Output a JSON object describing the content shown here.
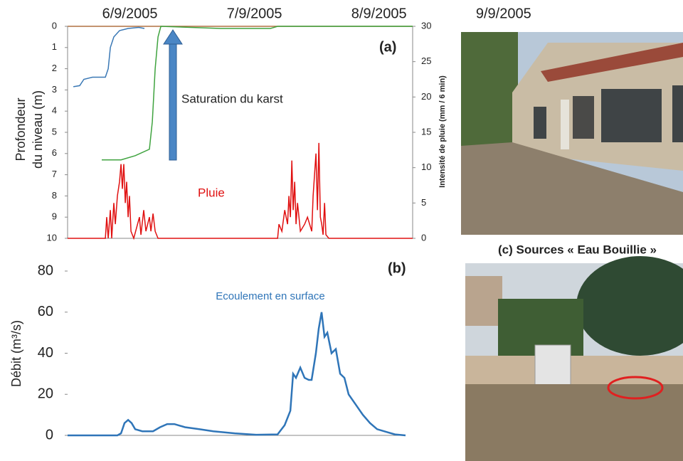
{
  "chart_data": [
    {
      "type": "line",
      "annotation": "(a)",
      "saturation_label": "Saturation du karst",
      "rain_label": "Pluie",
      "ylabel_lines": [
        "Profondeur",
        "du niveau (m)"
      ],
      "y2label": "Intensité de pluie (mm / 6 min)",
      "xlim": [
        5.5,
        8.27
      ],
      "xticks": [
        {
          "value": 6,
          "label": "6/9/2005"
        },
        {
          "value": 7,
          "label": "7/9/2005"
        },
        {
          "value": 8,
          "label": "8/9/2005"
        },
        {
          "value": 9,
          "label": "9/9/2005"
        }
      ],
      "ylim": [
        10,
        0
      ],
      "yticks": [
        0,
        1,
        2,
        3,
        4,
        5,
        6,
        7,
        8,
        9,
        10
      ],
      "y2lim": [
        0,
        30
      ],
      "y2ticks": [
        0,
        5,
        10,
        15,
        20,
        25,
        30
      ],
      "series": [
        {
          "color": "#3a78b5",
          "x": [
            5.546,
            5.597,
            5.631,
            5.7,
            5.803,
            5.826,
            5.843,
            5.871,
            5.917,
            5.986,
            6.071,
            6.117
          ],
          "values": [
            2.85,
            2.8,
            2.5,
            2.4,
            2.4,
            2.0,
            1.0,
            0.5,
            0.2,
            0.1,
            0.05,
            0.1
          ]
        },
        {
          "color": "#3fa33f",
          "x": [
            5.774,
            5.929,
            6.043,
            6.157,
            6.18,
            6.203,
            6.226,
            6.249,
            6.729,
            7.129,
            7.186,
            8.27
          ],
          "values": [
            6.3,
            6.3,
            6.1,
            5.8,
            4.5,
            2,
            0.5,
            0,
            0.1,
            0.1,
            0,
            0
          ]
        },
        {
          "color": "#e01010",
          "axis": "y2",
          "x": [
            5.5,
            5.803,
            5.814,
            5.826,
            5.843,
            5.854,
            5.871,
            5.883,
            5.9,
            5.917,
            5.929,
            5.94,
            5.951,
            5.963,
            5.974,
            5.986,
            5.997,
            6.009,
            6.031,
            6.077,
            6.089,
            6.111,
            6.129,
            6.157,
            6.169,
            6.186,
            6.203,
            6.226,
            7.186,
            7.197,
            7.22,
            7.243,
            7.266,
            7.277,
            7.289,
            7.3,
            7.311,
            7.323,
            7.334,
            7.346,
            7.369,
            7.403,
            7.426,
            7.46,
            7.471,
            7.494,
            7.506,
            7.517,
            7.529,
            7.54,
            7.551,
            7.563,
            7.574,
            7.597,
            8.27
          ],
          "values": [
            0,
            0,
            3,
            0,
            4,
            0,
            5,
            2,
            6,
            8,
            10.5,
            7,
            10.5,
            5,
            8,
            3,
            6,
            1,
            0,
            3,
            0.5,
            4,
            1,
            3,
            1,
            3.5,
            1,
            0,
            0,
            2,
            1,
            4,
            2,
            6,
            3,
            11,
            4,
            8,
            2,
            5,
            1,
            2,
            3,
            1,
            6,
            12,
            4,
            13.5,
            3,
            2,
            0.5,
            5,
            0.5,
            0,
            0
          ]
        }
      ]
    },
    {
      "type": "line",
      "annotation": "(b)",
      "flow_label": "Ecoulement en surface",
      "ylabel": "Débit (m³/s)",
      "xlim": [
        5.5,
        8.214
      ],
      "ylim": [
        0,
        80
      ],
      "yticks": [
        0,
        20,
        40,
        60,
        80
      ],
      "series": [
        {
          "color": "#2f75b8",
          "x": [
            5.5,
            5.9,
            5.929,
            5.957,
            5.986,
            6.014,
            6.043,
            6.1,
            6.186,
            6.243,
            6.3,
            6.357,
            6.443,
            6.557,
            6.671,
            6.843,
            7.014,
            7.186,
            7.243,
            7.289,
            7.311,
            7.334,
            7.369,
            7.403,
            7.437,
            7.46,
            7.494,
            7.517,
            7.54,
            7.563,
            7.586,
            7.62,
            7.654,
            7.689,
            7.723,
            7.757,
            7.814,
            7.871,
            7.929,
            7.986,
            8.071,
            8.129,
            8.214
          ],
          "values": [
            0,
            0,
            1,
            6,
            7.5,
            6,
            3,
            2,
            2,
            4,
            5.5,
            5.5,
            4,
            3,
            2,
            1,
            0.3,
            0.5,
            5,
            12,
            30,
            28,
            33,
            28,
            27,
            27,
            40,
            52,
            60,
            48,
            50,
            40,
            42,
            30,
            28,
            20,
            15,
            10,
            6,
            3,
            1.5,
            0.5,
            0
          ]
        }
      ]
    }
  ],
  "photo_caption": "(c) Sources « Eau Bouillie »"
}
